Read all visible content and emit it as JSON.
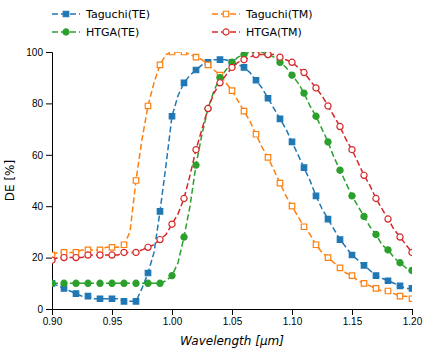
{
  "chart_data": {
    "type": "line",
    "xlabel": "Wavelength [μm]",
    "ylabel": "DE [%]",
    "xlim": [
      0.9,
      1.2
    ],
    "ylim": [
      0,
      100
    ],
    "xticks": [
      {
        "value": 0.9,
        "label": "0.90"
      },
      {
        "value": 0.95,
        "label": "0.95"
      },
      {
        "value": 1.0,
        "label": "1.00"
      },
      {
        "value": 1.05,
        "label": "1.05"
      },
      {
        "value": 1.1,
        "label": "1.10"
      },
      {
        "value": 1.15,
        "label": "1.15"
      },
      {
        "value": 1.2,
        "label": "1.20"
      }
    ],
    "yticks": [
      0,
      20,
      40,
      60,
      80,
      100
    ],
    "grid": false,
    "legend": "top",
    "x": [
      0.9,
      0.905,
      0.91,
      0.915,
      0.92,
      0.925,
      0.93,
      0.935,
      0.94,
      0.945,
      0.95,
      0.955,
      0.96,
      0.965,
      0.97,
      0.975,
      0.98,
      0.985,
      0.99,
      0.995,
      1.0,
      1.005,
      1.01,
      1.015,
      1.02,
      1.025,
      1.03,
      1.035,
      1.04,
      1.045,
      1.05,
      1.055,
      1.06,
      1.065,
      1.07,
      1.075,
      1.08,
      1.085,
      1.09,
      1.095,
      1.1,
      1.105,
      1.11,
      1.115,
      1.12,
      1.125,
      1.13,
      1.135,
      1.14,
      1.145,
      1.15,
      1.155,
      1.16,
      1.165,
      1.17,
      1.175,
      1.18,
      1.185,
      1.19,
      1.195,
      1.2
    ],
    "series": [
      {
        "name": "Taguchi(TE)",
        "marker": "square",
        "line_style": "dashed",
        "values": [
          10,
          9,
          8,
          7,
          6,
          5,
          5,
          4,
          4,
          4,
          4,
          4,
          3,
          3,
          3,
          8,
          14,
          22,
          38,
          56,
          75,
          83,
          88,
          91,
          93,
          95,
          96,
          97,
          97,
          97,
          96,
          95,
          94,
          92,
          89,
          86,
          82,
          78,
          74,
          70,
          65,
          60,
          55,
          50,
          44,
          39,
          35,
          31,
          27,
          24,
          21,
          19,
          17,
          15,
          13,
          12,
          11,
          10,
          9,
          8,
          8
        ]
      },
      {
        "name": "Taguchi(TM)",
        "marker": "square-open",
        "line_style": "dashed",
        "values": [
          21,
          22,
          22,
          22,
          22,
          23,
          23,
          23,
          23,
          24,
          24,
          24,
          25,
          30,
          50,
          66,
          79,
          88,
          95,
          99,
          100,
          100,
          100,
          99,
          98,
          97,
          95,
          93,
          91,
          88,
          85,
          81,
          77,
          73,
          68,
          63,
          59,
          54,
          49,
          44,
          40,
          36,
          32,
          29,
          25,
          22,
          20,
          18,
          16,
          14,
          13,
          11,
          10,
          9,
          8,
          7,
          7,
          6,
          5,
          5,
          4
        ]
      },
      {
        "name": "HTGA(TE)",
        "marker": "circle",
        "line_style": "dashed",
        "values": [
          10,
          10,
          10,
          10,
          10,
          10,
          10,
          10,
          10,
          10,
          10,
          10,
          10,
          10,
          10,
          10,
          10,
          10,
          10,
          11,
          13,
          18,
          28,
          40,
          56,
          68,
          78,
          85,
          90,
          93,
          96,
          98,
          99,
          100,
          100,
          100,
          99,
          98,
          96,
          94,
          91,
          88,
          84,
          79,
          75,
          70,
          65,
          59,
          54,
          49,
          44,
          40,
          36,
          32,
          29,
          25,
          23,
          20,
          18,
          16,
          15
        ]
      },
      {
        "name": "HTGA(TM)",
        "marker": "circle-open",
        "line_style": "dashed",
        "values": [
          19,
          20,
          20,
          20,
          20,
          20,
          21,
          21,
          21,
          21,
          21,
          21,
          22,
          22,
          22,
          23,
          24,
          25,
          27,
          29,
          33,
          37,
          43,
          52,
          62,
          70,
          78,
          84,
          88,
          91,
          94,
          96,
          97,
          98,
          99,
          99,
          99,
          99,
          98,
          97,
          96,
          94,
          92,
          89,
          86,
          83,
          79,
          75,
          71,
          66,
          62,
          57,
          52,
          48,
          43,
          39,
          35,
          31,
          28,
          25,
          22
        ]
      }
    ]
  }
}
